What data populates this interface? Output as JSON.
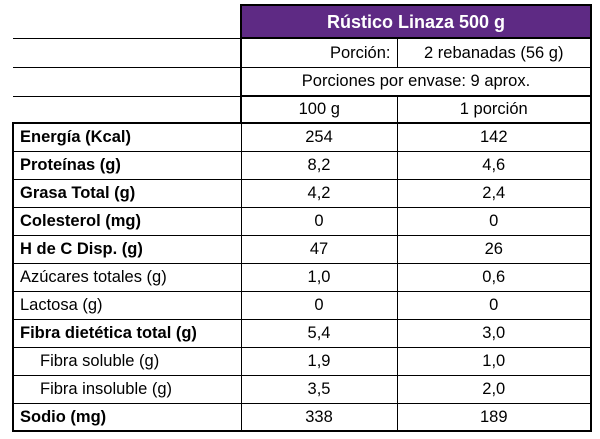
{
  "product_title": "Rústico Linaza 500 g",
  "portion_label": "Porción:",
  "portion_value": "2 rebanadas (56 g)",
  "servings_per_container": "Porciones por envase: 9 aprox.",
  "column_headers": [
    "100 g",
    "1 porción"
  ],
  "colors": {
    "header_background": "#5e2a84",
    "header_text": "#ffffff"
  },
  "nutrients": [
    {
      "name": "Energía (Kcal)",
      "per_100g": "254",
      "per_portion": "142",
      "bold": true,
      "indent": false
    },
    {
      "name": "Proteínas (g)",
      "per_100g": "8,2",
      "per_portion": "4,6",
      "bold": true,
      "indent": false
    },
    {
      "name": "Grasa Total (g)",
      "per_100g": "4,2",
      "per_portion": "2,4",
      "bold": true,
      "indent": false
    },
    {
      "name": "Colesterol (mg)",
      "per_100g": "0",
      "per_portion": "0",
      "bold": true,
      "indent": false
    },
    {
      "name": "H de C Disp. (g)",
      "per_100g": "47",
      "per_portion": "26",
      "bold": true,
      "indent": false
    },
    {
      "name": "Azúcares totales (g)",
      "per_100g": "1,0",
      "per_portion": "0,6",
      "bold": false,
      "indent": false
    },
    {
      "name": "Lactosa (g)",
      "per_100g": "0",
      "per_portion": "0",
      "bold": false,
      "indent": false
    },
    {
      "name": "Fibra dietética total (g)",
      "per_100g": "5,4",
      "per_portion": "3,0",
      "bold": true,
      "indent": false
    },
    {
      "name": "Fibra soluble (g)",
      "per_100g": "1,9",
      "per_portion": "1,0",
      "bold": false,
      "indent": true
    },
    {
      "name": "Fibra insoluble (g)",
      "per_100g": "3,5",
      "per_portion": "2,0",
      "bold": false,
      "indent": true
    },
    {
      "name": "Sodio (mg)",
      "per_100g": "338",
      "per_portion": "189",
      "bold": true,
      "indent": false
    }
  ]
}
